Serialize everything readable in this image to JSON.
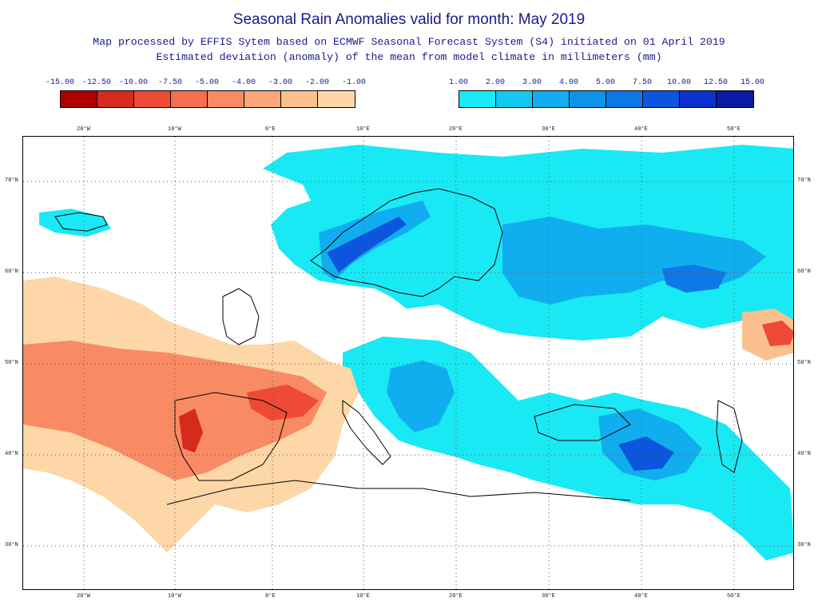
{
  "header": {
    "title": "Seasonal Rain Anomalies valid for month: May 2019",
    "subtitle_line1": "Map processed by EFFIS Sytem based on ECMWF Seasonal Forecast System (S4) initiated on 01 April 2019",
    "subtitle_line2": "Estimated deviation (anomaly) of the mean from model climate in millimeters (mm)"
  },
  "legend_negative": {
    "labels": [
      "-15.00",
      "-12.50",
      "-10.00",
      "-7.50",
      "-5.00",
      "-4.00",
      "-3.00",
      "-2.00",
      "-1.00"
    ],
    "colors": [
      "#b00000",
      "#d62a1e",
      "#ee4a35",
      "#f56e50",
      "#f88a64",
      "#fba679",
      "#fcc08f",
      "#fdd7a8"
    ]
  },
  "legend_positive": {
    "labels": [
      "1.00",
      "2.00",
      "3.00",
      "4.00",
      "5.00",
      "7.50",
      "10.00",
      "12.50",
      "15.00"
    ],
    "colors": [
      "#19e9f4",
      "#13c9f2",
      "#10aeee",
      "#0e93eb",
      "#0d78e7",
      "#0c55df",
      "#0b32cf",
      "#091aa4"
    ]
  },
  "axes": {
    "lon_labels": [
      "20°W",
      "10°W",
      "0°E",
      "10°E",
      "20°E",
      "30°E",
      "40°E",
      "50°E"
    ],
    "lat_labels": [
      "70°N",
      "60°N",
      "50°N",
      "40°N",
      "30°N"
    ]
  }
}
